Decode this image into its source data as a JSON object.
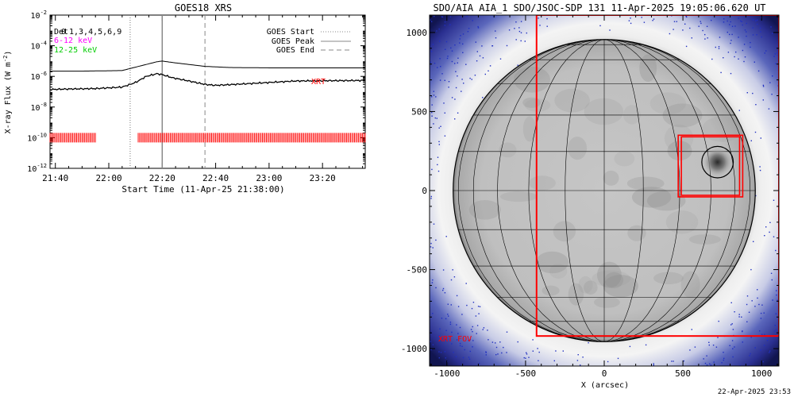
{
  "colors": {
    "background": "#ffffff",
    "axis": "#000000",
    "long_channel": "#000000",
    "short_channel": "#000000",
    "xrt_marks": "#ff0000",
    "label_6_12": "#ff00ff",
    "label_12_25": "#00cc00",
    "xrt_fov": "#ff0000",
    "disk_grid": "#000000",
    "noise_dots": "#2030c0"
  },
  "chart_data": [
    {
      "type": "line",
      "title": "GOES18 XRS",
      "xlabel": "Start Time (11-Apr-25 21:38:00)",
      "ylabel": "X-ray Flux (W m⁻²)",
      "ylabel_main": "X-ray Flux (W m",
      "ylabel_sup": "-2",
      "ylabel_close": ")",
      "y_scale": "log",
      "ylim": [
        1e-12,
        0.01
      ],
      "y_ticks": [
        {
          "value": 0.01,
          "base": "10",
          "exp": "-2"
        },
        {
          "value": 0.0001,
          "base": "10",
          "exp": "-4"
        },
        {
          "value": 1e-06,
          "base": "10",
          "exp": "-6"
        },
        {
          "value": 1e-08,
          "base": "10",
          "exp": "-8"
        },
        {
          "value": 1e-10,
          "base": "10",
          "exp": "-10"
        },
        {
          "value": 1e-12,
          "base": "10",
          "exp": "-12"
        }
      ],
      "xlim": [
        "21:38",
        "23:36"
      ],
      "x_ticks": [
        "21:40",
        "22:00",
        "22:20",
        "22:40",
        "23:00",
        "23:20"
      ],
      "legend_top_left": {
        "overlap_a": "Det",
        "overlap_b": "0",
        "detectors": "1,3,4,5,6,9",
        "band1": "6-12 keV",
        "band2": "12-25 keV"
      },
      "legend_top_right": [
        {
          "label": "GOES Start",
          "style": "dotted"
        },
        {
          "label": "GOES Peak",
          "style": "solid"
        },
        {
          "label": "GOES End",
          "style": "dashed"
        }
      ],
      "events": {
        "start": "22:08",
        "peak": "22:20",
        "end": "22:36"
      },
      "annotation": "XRT",
      "series": [
        {
          "channel": "long",
          "x": [
            "21:38",
            "21:50",
            "22:05",
            "22:10",
            "22:14",
            "22:18",
            "22:20",
            "22:24",
            "22:30",
            "22:36",
            "22:45",
            "23:00",
            "23:20",
            "23:36"
          ],
          "y": [
            2.2e-06,
            2.2e-06,
            2.4e-06,
            4e-06,
            6e-06,
            9e-06,
            1e-05,
            8e-06,
            6e-06,
            4.5e-06,
            3.8e-06,
            3.6e-06,
            3.6e-06,
            3.6e-06
          ]
        },
        {
          "channel": "short",
          "x": [
            "21:38",
            "21:45",
            "21:55",
            "22:05",
            "22:10",
            "22:14",
            "22:18",
            "22:20",
            "22:24",
            "22:30",
            "22:36",
            "22:40",
            "22:50",
            "23:00",
            "23:10",
            "23:20",
            "23:36"
          ],
          "y": [
            1.4e-07,
            1.5e-07,
            1.6e-07,
            2e-07,
            4e-07,
            1e-06,
            1.5e-06,
            1.3e-06,
            8e-07,
            5e-07,
            3e-07,
            2.6e-07,
            3.2e-07,
            4e-07,
            5e-07,
            5.2e-07,
            5.4e-07
          ]
        }
      ],
      "xrt_coverage": [
        {
          "from": "21:38",
          "to": "21:55"
        },
        {
          "from": "22:11",
          "to": "23:36"
        }
      ]
    },
    {
      "type": "image",
      "title": "SDO/AIA AIA_1 SDO/JSOC-SDP 131 11-Apr-2025 19:05:06.620 UT",
      "xlabel": "X (arcsec)",
      "xlim": [
        -1110,
        1110
      ],
      "ylim": [
        -1110,
        1110
      ],
      "x_ticks": [
        "-1000",
        "-500",
        "0",
        "500",
        "1000"
      ],
      "y_ticks": [
        "1000",
        "500",
        "0",
        "-500",
        "-1000"
      ],
      "solar_radius_arcsec": 960,
      "xrt_fov_label": "XRT FOV",
      "xrt_fov_box": {
        "x": [
          -430,
          1110
        ],
        "y": [
          -920,
          1110
        ]
      },
      "region_boxes": [
        {
          "x": [
            470,
            880
          ],
          "y": [
            -40,
            350
          ]
        },
        {
          "x": [
            490,
            860
          ],
          "y": [
            -30,
            340
          ]
        }
      ],
      "flare_circle": {
        "center": [
          720,
          180
        ],
        "radius": 100
      },
      "timestamp": "22-Apr-2025 23:53"
    }
  ]
}
